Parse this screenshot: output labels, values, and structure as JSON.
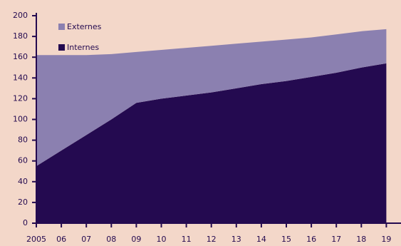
{
  "chart_data": {
    "type": "stacked-area",
    "categories": [
      "2005",
      "06",
      "07",
      "08",
      "09",
      "10",
      "11",
      "12",
      "13",
      "14",
      "15",
      "16",
      "17",
      "18",
      "19"
    ],
    "series": [
      {
        "name": "Internes",
        "color": "#240a50",
        "values": [
          55,
          70,
          85,
          100,
          116,
          120,
          123,
          126,
          130,
          134,
          137,
          141,
          145,
          150,
          154
        ]
      },
      {
        "name": "Externes",
        "color": "#8b80b0",
        "values": [
          107,
          92,
          77,
          63,
          49,
          47,
          46,
          45,
          43,
          41,
          40,
          38,
          37,
          35,
          33
        ]
      }
    ],
    "ylim": [
      0,
      200
    ],
    "yticks": [
      0,
      20,
      40,
      60,
      80,
      100,
      120,
      140,
      160,
      180,
      200
    ]
  }
}
